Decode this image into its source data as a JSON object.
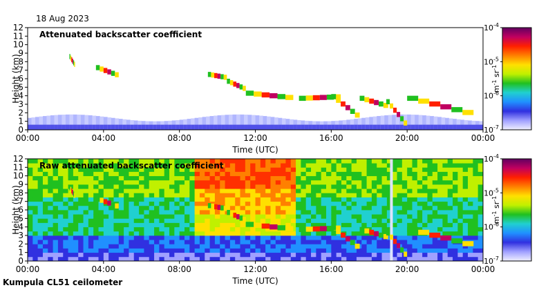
{
  "date_label": "18 Aug 2023",
  "footer_label": "Kumpula CL51 ceilometer",
  "chart_data": [
    {
      "type": "heatmap",
      "title": "Attenuated backscatter coefficient",
      "xlabel": "Time (UTC)",
      "ylabel": "Height (km)",
      "x_ticks": [
        "00:00",
        "04:00",
        "08:00",
        "12:00",
        "16:00",
        "20:00",
        "00:00"
      ],
      "xlim_hours": [
        0,
        24
      ],
      "y_ticks": [
        0,
        1,
        2,
        3,
        4,
        5,
        6,
        7,
        8,
        9,
        10,
        11,
        12
      ],
      "ylim_km": [
        0,
        12
      ],
      "colorbar": {
        "scale": "log",
        "range": [
          1e-07,
          0.0001
        ],
        "tick_labels": [
          "10-7",
          "10-6",
          "10-5",
          "10-4"
        ],
        "unit_label": "m-1 sr-1",
        "colors": [
          "#f0f0ff",
          "#a0a0ff",
          "#3030e0",
          "#2090ff",
          "#20d0d0",
          "#20c020",
          "#c0f000",
          "#ffe000",
          "#ff8000",
          "#ff2000",
          "#c00060",
          "#600060"
        ]
      }
    },
    {
      "type": "heatmap",
      "title": "Raw attenuated backscatter coefficient",
      "xlabel": "Time (UTC)",
      "ylabel": "Height (km)",
      "x_ticks": [
        "00:00",
        "04:00",
        "08:00",
        "12:00",
        "16:00",
        "20:00",
        "00:00"
      ],
      "xlim_hours": [
        0,
        24
      ],
      "y_ticks": [
        0,
        1,
        2,
        3,
        4,
        5,
        6,
        7,
        8,
        9,
        10,
        11,
        12
      ],
      "ylim_km": [
        0,
        12
      ],
      "colorbar": {
        "scale": "log",
        "range": [
          1e-07,
          0.0001
        ],
        "tick_labels": [
          "10-7",
          "10-6",
          "10-5",
          "10-4"
        ],
        "unit_label": "m-1 sr-1",
        "colors": [
          "#f0f0ff",
          "#a0a0ff",
          "#3030e0",
          "#2090ff",
          "#20d0d0",
          "#20c020",
          "#c0f000",
          "#ffe000",
          "#ff8000",
          "#ff2000",
          "#c00060",
          "#600060"
        ]
      }
    }
  ]
}
